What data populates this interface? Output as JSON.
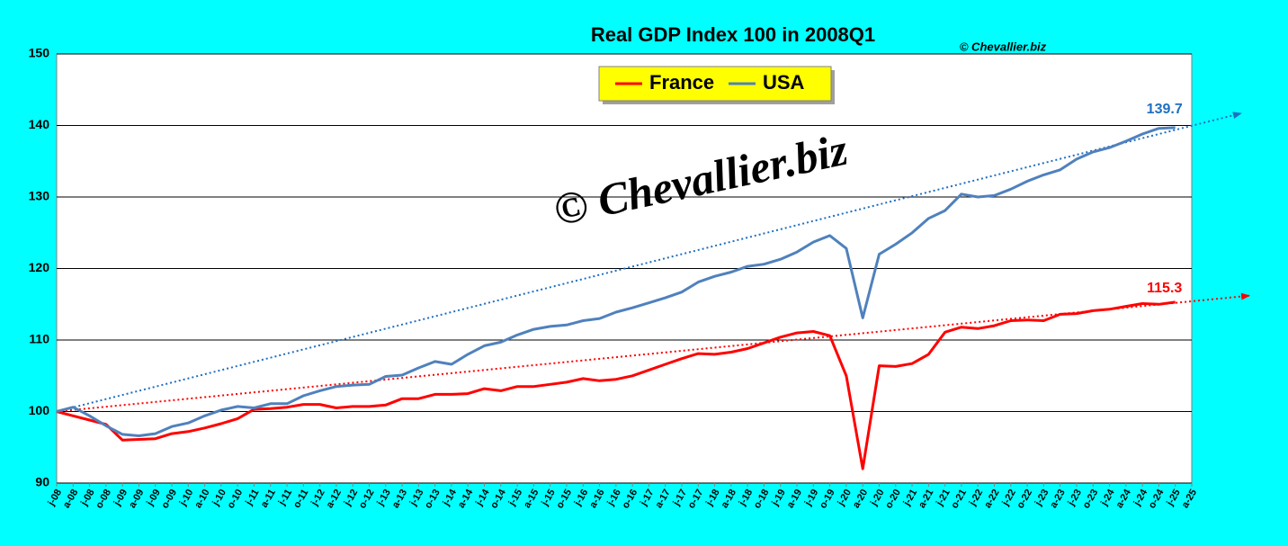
{
  "chart_data": {
    "type": "line",
    "title": "Real GDP Index 100 in 2008Q1",
    "credit": "© Chevallier.biz",
    "watermark": "© Chevallier.biz",
    "categories": [
      "j-08",
      "a-08",
      "j-08",
      "o-08",
      "j-09",
      "a-09",
      "j-09",
      "o-09",
      "j-10",
      "a-10",
      "j-10",
      "o-10",
      "j-11",
      "a-11",
      "j-11",
      "o-11",
      "j-12",
      "a-12",
      "j-12",
      "o-12",
      "j-13",
      "a-13",
      "j-13",
      "o-13",
      "j-14",
      "a-14",
      "j-14",
      "o-14",
      "j-15",
      "a-15",
      "j-15",
      "o-15",
      "j-16",
      "a-16",
      "j-16",
      "o-16",
      "j-17",
      "a-17",
      "j-17",
      "o-17",
      "j-18",
      "a-18",
      "j-18",
      "o-18",
      "j-19",
      "a-19",
      "j-19",
      "o-19",
      "j-20",
      "a-20",
      "j-20",
      "o-20",
      "j-21",
      "a-21",
      "j-21",
      "o-21",
      "j-22",
      "a-22",
      "j-22",
      "o-22",
      "j-23",
      "a-23",
      "j-23",
      "o-23",
      "j-24",
      "a-24",
      "j-24",
      "o-24",
      "j-25",
      "a-25"
    ],
    "series": [
      {
        "name": "France",
        "color": "#ff0000",
        "end_label": 115.3,
        "values": [
          100,
          99.4,
          98.8,
          98.2,
          96.0,
          96.1,
          96.2,
          96.9,
          97.2,
          97.7,
          98.3,
          99.0,
          100.3,
          100.4,
          100.6,
          101.0,
          101.0,
          100.5,
          100.7,
          100.7,
          100.9,
          101.8,
          101.8,
          102.4,
          102.4,
          102.5,
          103.2,
          102.9,
          103.5,
          103.5,
          103.8,
          104.1,
          104.6,
          104.3,
          104.5,
          105.0,
          105.8,
          106.6,
          107.4,
          108.1,
          108.0,
          108.3,
          108.8,
          109.6,
          110.4,
          111.0,
          111.2,
          110.6,
          105.0,
          92.0,
          106.4,
          106.3,
          106.7,
          108.0,
          111.1,
          111.8,
          111.6,
          112.0,
          112.7,
          112.8,
          112.7,
          113.6,
          113.7,
          114.1,
          114.3,
          114.7,
          115.1,
          115.0,
          115.3,
          null
        ]
      },
      {
        "name": "USA",
        "color": "#4f81bd",
        "end_label": 139.7,
        "values": [
          100,
          100.6,
          99.4,
          98.0,
          96.8,
          96.6,
          96.9,
          97.9,
          98.4,
          99.4,
          100.2,
          100.7,
          100.5,
          101.1,
          101.1,
          102.2,
          102.9,
          103.5,
          103.7,
          103.8,
          104.9,
          105.1,
          106.1,
          107.0,
          106.6,
          108.0,
          109.2,
          109.7,
          110.7,
          111.5,
          111.9,
          112.1,
          112.7,
          113.0,
          113.9,
          114.5,
          115.2,
          115.9,
          116.7,
          118.1,
          118.9,
          119.5,
          120.3,
          120.6,
          121.3,
          122.3,
          123.7,
          124.6,
          122.8,
          113.1,
          122.0,
          123.4,
          125.0,
          127.0,
          128.1,
          130.4,
          130.0,
          130.2,
          131.1,
          132.2,
          133.1,
          133.8,
          135.3,
          136.3,
          136.9,
          137.8,
          138.8,
          139.6,
          139.7,
          null
        ]
      }
    ],
    "trendlines": [
      {
        "color": "#1f6fc0",
        "x": [
          0,
          72
        ],
        "values": [
          100,
          141.7
        ]
      },
      {
        "color": "#ff0000",
        "x": [
          0,
          72.5
        ],
        "values": [
          100,
          116.2
        ]
      }
    ],
    "ylim": [
      90,
      150
    ],
    "yticks": [
      90,
      100,
      110,
      120,
      130,
      140,
      150
    ],
    "grid": true
  }
}
